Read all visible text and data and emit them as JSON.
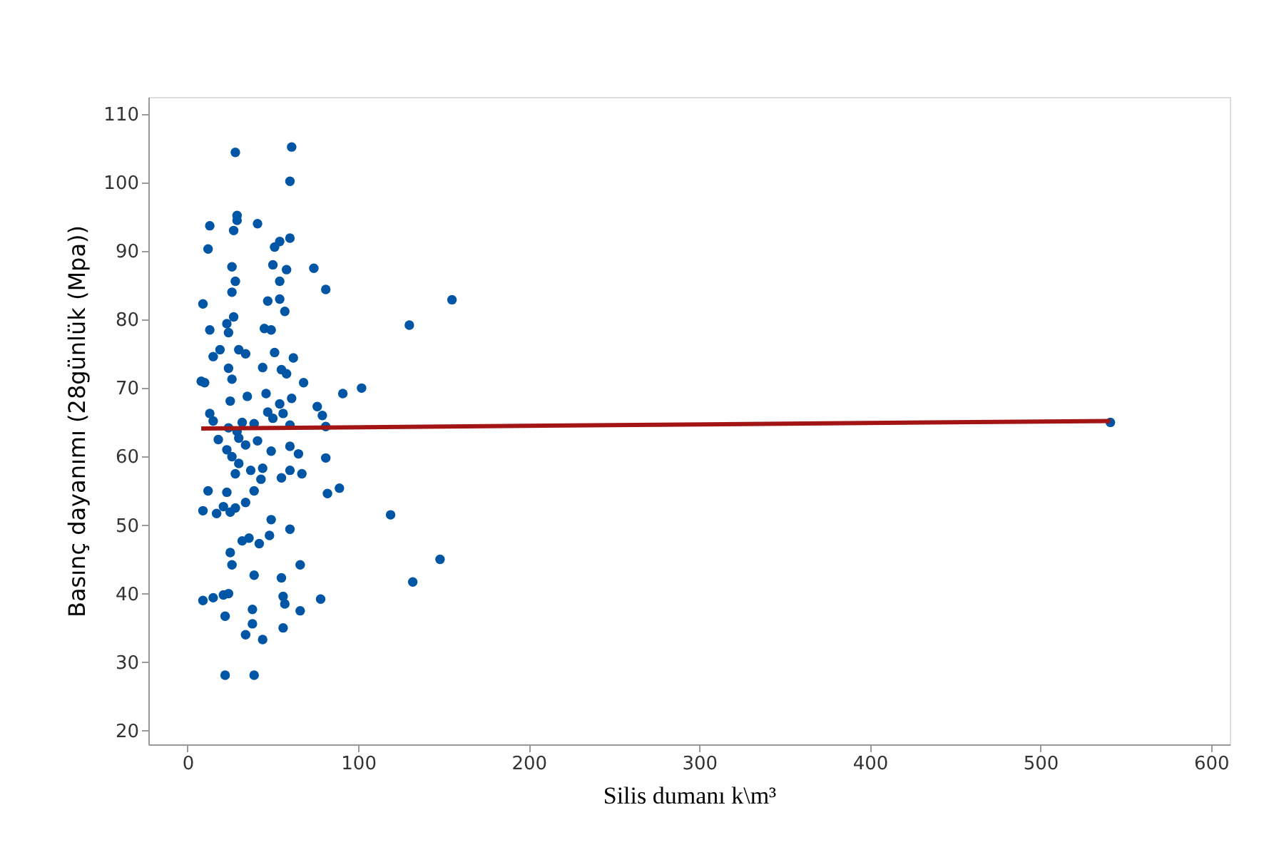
{
  "chart_data": {
    "type": "scatter",
    "xlabel": "Silis dumanı k\\m³",
    "ylabel": "Basınç dayanımı (28günlük (Mpa))",
    "xlim": [
      -23,
      611
    ],
    "ylim": [
      18,
      112.5
    ],
    "xticks": [
      0,
      100,
      200,
      300,
      400,
      500,
      600
    ],
    "yticks": [
      20,
      30,
      40,
      50,
      60,
      70,
      80,
      90,
      100,
      110
    ],
    "grid": false,
    "series": [
      {
        "color": "#0056a4",
        "marker": "circle",
        "x": [
          28,
          61,
          60,
          13,
          41,
          29,
          29,
          27,
          12,
          54,
          51,
          60,
          26,
          50,
          58,
          74,
          81,
          54,
          28,
          26,
          9,
          47,
          54,
          57,
          155,
          27,
          23,
          24,
          45,
          49,
          130,
          13,
          30,
          34,
          15,
          51,
          62,
          24,
          19,
          44,
          55,
          58,
          8,
          10,
          68,
          26,
          102,
          91,
          35,
          46,
          25,
          54,
          61,
          76,
          47,
          56,
          79,
          13,
          15,
          32,
          39,
          50,
          60,
          81,
          541,
          24,
          29,
          30,
          18,
          41,
          34,
          23,
          60,
          81,
          26,
          49,
          65,
          30,
          37,
          44,
          60,
          28,
          67,
          43,
          55,
          12,
          23,
          39,
          82,
          89,
          34,
          21,
          28,
          25,
          17,
          9,
          119,
          49,
          48,
          60,
          36,
          32,
          42,
          25,
          26,
          66,
          148,
          9,
          15,
          21,
          24,
          39,
          132,
          55,
          56,
          78,
          57,
          38,
          22,
          66,
          38,
          56,
          34,
          44,
          22,
          39
        ],
        "values": [
          104.4,
          105.2,
          100.2,
          93.7,
          94,
          95.2,
          94.5,
          93,
          90.3,
          91.4,
          90.6,
          91.9,
          87.7,
          88,
          87.3,
          87.5,
          84.4,
          85.6,
          85.6,
          84,
          82.3,
          82.7,
          83,
          81.2,
          82.9,
          80.4,
          79.4,
          78.1,
          78.7,
          78.5,
          79.2,
          78.5,
          75.6,
          75,
          74.6,
          75.2,
          74.4,
          72.9,
          75.6,
          73,
          72.7,
          72.1,
          71,
          70.8,
          70.8,
          71.3,
          70,
          69.2,
          68.8,
          69.2,
          68.1,
          67.7,
          68.5,
          67.3,
          66.5,
          66.3,
          66,
          66.3,
          65.2,
          65,
          64.8,
          65.6,
          64.6,
          64.4,
          65,
          64.2,
          63.7,
          62.7,
          62.5,
          62.3,
          61.7,
          61,
          61.5,
          59.8,
          60,
          60.8,
          60.4,
          59,
          58,
          58.3,
          58,
          57.5,
          57.5,
          56.7,
          56.9,
          55,
          54.8,
          55,
          54.6,
          55.4,
          53.3,
          52.7,
          52.5,
          51.9,
          51.7,
          52.1,
          51.5,
          50.8,
          48.5,
          49.4,
          48.1,
          47.7,
          47.3,
          46,
          44.2,
          44.2,
          45,
          39,
          39.4,
          39.8,
          40,
          42.7,
          41.7,
          42.3,
          39.6,
          39.2,
          38.5,
          37.7,
          36.7,
          37.5,
          35.6,
          35,
          34,
          33.3,
          28.1,
          28.1
        ]
      },
      {
        "type": "line",
        "color": "#a31515",
        "line_style": "solid",
        "x": [
          8,
          541
        ],
        "values": [
          64.1,
          65.2
        ]
      }
    ]
  }
}
